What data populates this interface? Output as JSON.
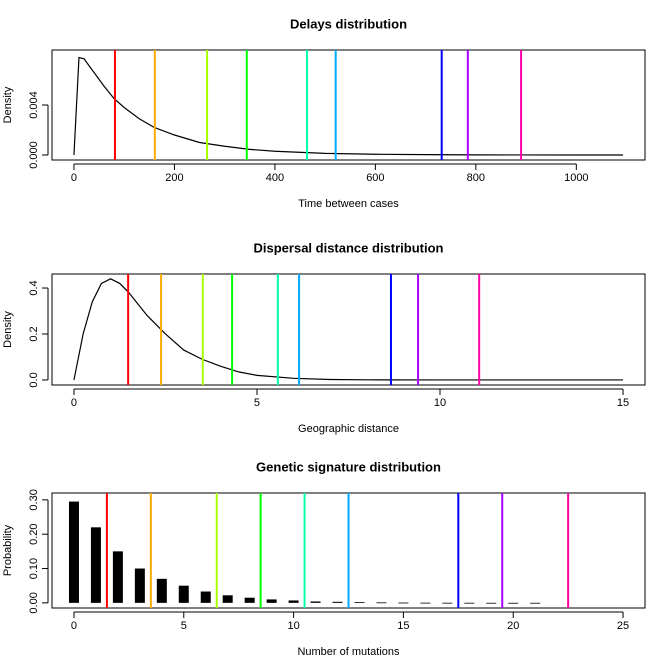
{
  "chart_data": [
    {
      "type": "line",
      "title": "Delays distribution",
      "x_label": "Time between cases",
      "y_label": "Density",
      "x": [
        0,
        10,
        20,
        40,
        60,
        80,
        100,
        130,
        160,
        200,
        250,
        300,
        350,
        400,
        500,
        600,
        700,
        800,
        900,
        1000,
        1093
      ],
      "series": [
        {
          "color": "#000000",
          "values": [
            0,
            0.0078,
            0.0077,
            0.0066,
            0.0055,
            0.0045,
            0.0038,
            0.0029,
            0.0022,
            0.0016,
            0.001,
            0.0007,
            0.00045,
            0.0003,
            0.00013,
            6e-05,
            3e-05,
            1e-05,
            5e-06,
            0,
            0
          ]
        }
      ],
      "vlines": {
        "values": [
          81.6,
          161,
          265,
          344,
          464,
          521,
          732,
          784,
          890
        ],
        "colors": [
          "#FF0000",
          "#FFAA00",
          "#AAFF00",
          "#00FF00",
          "#00FFAA",
          "#00AAFF",
          "#0000FF",
          "#AA00FF",
          "#FF00AA"
        ]
      },
      "xlim": [
        -43.7,
        1136.7
      ],
      "xticks": [
        0,
        200,
        400,
        600,
        800,
        1000
      ],
      "ylim": [
        -0.0004,
        0.0084
      ],
      "yticks": [
        {
          "value": 0,
          "label": "0.000"
        },
        {
          "value": 0.004,
          "label": "0.004"
        }
      ]
    },
    {
      "type": "line",
      "title": "Dispersal distance distribution",
      "x_label": "Geographic distance",
      "y_label": "Density",
      "x": [
        0,
        0.25,
        0.5,
        0.75,
        1,
        1.25,
        1.5,
        2,
        2.5,
        3,
        3.5,
        4,
        4.5,
        5,
        6,
        7,
        8,
        10,
        15
      ],
      "series": [
        {
          "color": "#000000",
          "values": [
            0,
            0.2,
            0.34,
            0.42,
            0.44,
            0.42,
            0.38,
            0.28,
            0.2,
            0.13,
            0.09,
            0.06,
            0.035,
            0.02,
            0.007,
            0.002,
            0.0005,
            0,
            0
          ]
        }
      ],
      "vlines": {
        "values": [
          1.48,
          2.38,
          3.52,
          4.32,
          5.57,
          6.15,
          8.66,
          9.4,
          11.07
        ],
        "colors": [
          "#FF0000",
          "#FFAA00",
          "#AAFF00",
          "#00FF00",
          "#00FFAA",
          "#00AAFF",
          "#0000FF",
          "#AA00FF",
          "#FF00AA"
        ]
      },
      "xlim": [
        -0.6,
        15.6
      ],
      "xticks": [
        0,
        5,
        10,
        15
      ],
      "ylim": [
        -0.022,
        0.461
      ],
      "yticks": [
        {
          "value": 0,
          "label": "0.0"
        },
        {
          "value": 0.2,
          "label": "0.2"
        },
        {
          "value": 0.4,
          "label": "0.4"
        }
      ]
    },
    {
      "type": "bar",
      "title": "Genetic signature distribution",
      "x_label": "Number of mutations",
      "y_label": "Probability",
      "x": [
        0,
        1,
        2,
        3,
        4,
        5,
        6,
        7,
        8,
        9,
        10,
        11,
        12,
        13,
        14,
        15,
        16,
        17,
        18,
        19,
        20,
        21
      ],
      "series": [
        {
          "color": "#000000",
          "values": [
            0.295,
            0.22,
            0.15,
            0.1,
            0.07,
            0.05,
            0.033,
            0.022,
            0.015,
            0.01,
            0.007,
            0.004,
            0.003,
            0.002,
            0.0013,
            0.0008,
            0.0005,
            0.0003,
            0.0002,
            0.0001,
            0.0001,
            0.0001
          ]
        }
      ],
      "vlines": {
        "values": [
          1.5,
          3.5,
          6.5,
          8.5,
          10.5,
          12.5,
          17.5,
          19.5,
          22.5
        ],
        "colors": [
          "#FF0000",
          "#FFAA00",
          "#AAFF00",
          "#00FF00",
          "#00FFAA",
          "#00AAFF",
          "#0000FF",
          "#AA00FF",
          "#FF00AA"
        ]
      },
      "xlim": [
        -1,
        26
      ],
      "xticks": [
        0,
        5,
        10,
        15,
        20,
        25
      ],
      "ylim": [
        -0.015,
        0.32
      ],
      "yticks": [
        {
          "value": 0,
          "label": "0.00"
        },
        {
          "value": 0.1,
          "label": "0.10"
        },
        {
          "value": 0.2,
          "label": "0.20"
        },
        {
          "value": 0.3,
          "label": "0.30"
        }
      ]
    }
  ]
}
